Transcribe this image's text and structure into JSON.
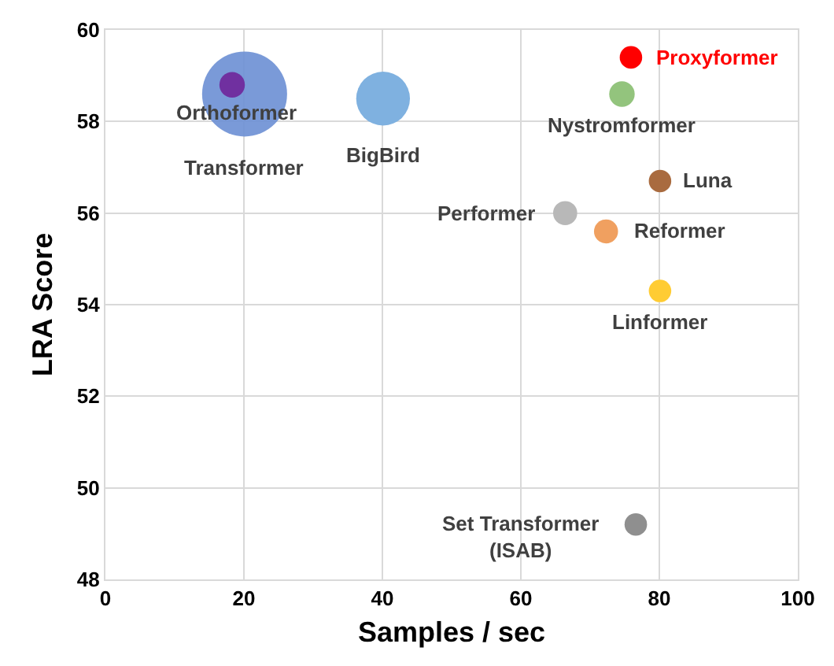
{
  "chart_data": {
    "type": "bubble",
    "xlabel": "Samples / sec",
    "ylabel": "LRA Score",
    "xlim": [
      0,
      100
    ],
    "xticks": [
      0,
      20,
      40,
      60,
      80,
      100
    ],
    "ylim": [
      48,
      60
    ],
    "yticks": [
      48,
      50,
      52,
      54,
      56,
      58,
      60
    ],
    "grid": true,
    "legend": false,
    "series": [
      {
        "name": "Transformer",
        "color": "#6b8fd4",
        "x": [
          20.1
        ],
        "values": [
          58.6
        ],
        "sizes": [
          1
        ]
      },
      {
        "name": "Orthoformer",
        "color": "#7030a0",
        "x": [
          18.3
        ],
        "values": [
          58.8
        ],
        "sizes": [
          0.09
        ]
      },
      {
        "name": "BigBird",
        "color": "#7fb1e0",
        "x": [
          40.1
        ],
        "values": [
          58.5
        ],
        "sizes": [
          0.4
        ]
      },
      {
        "name": "Proxyformer",
        "color": "#ff0000",
        "x": [
          75.9
        ],
        "values": [
          59.4
        ],
        "sizes": [
          0.07
        ]
      },
      {
        "name": "Nystromformer",
        "color": "#93c47d",
        "x": [
          74.6
        ],
        "values": [
          58.6
        ],
        "sizes": [
          0.09
        ]
      },
      {
        "name": "Luna",
        "color": "#a96b3f",
        "x": [
          80.1
        ],
        "values": [
          56.7
        ],
        "sizes": [
          0.07
        ]
      },
      {
        "name": "Performer",
        "color": "#b8b8b8",
        "x": [
          66.4
        ],
        "values": [
          56.0
        ],
        "sizes": [
          0.08
        ]
      },
      {
        "name": "Reformer",
        "color": "#f0a060",
        "x": [
          72.3
        ],
        "values": [
          55.6
        ],
        "sizes": [
          0.08
        ]
      },
      {
        "name": "Linformer",
        "color": "#ffcc33",
        "x": [
          80.1
        ],
        "values": [
          54.3
        ],
        "sizes": [
          0.07
        ]
      },
      {
        "name": "Set Transformer (ISAB)",
        "color": "#8f8f8f",
        "x": [
          76.6
        ],
        "values": [
          49.2
        ],
        "sizes": [
          0.07
        ]
      }
    ]
  }
}
